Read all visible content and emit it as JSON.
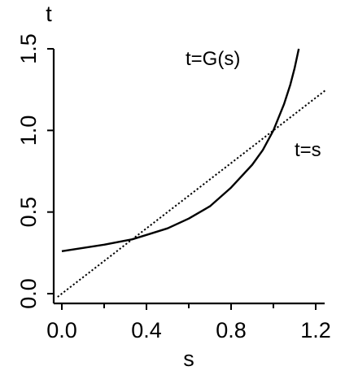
{
  "chart_data": {
    "type": "line",
    "xlabel": "s",
    "ylabel": "t",
    "xlim": [
      -0.02,
      1.25
    ],
    "ylim": [
      -0.02,
      1.5
    ],
    "x_ticks": [
      0.0,
      0.4,
      0.8,
      1.2
    ],
    "x_tick_labels": [
      "0.0",
      "0.4",
      "0.8",
      "1.2"
    ],
    "y_ticks": [
      0.0,
      0.5,
      1.0,
      1.5
    ],
    "y_tick_labels": [
      "0.0",
      "0.5",
      "1.0",
      "1.5"
    ],
    "grid": false,
    "legend": "none",
    "annotations": [
      {
        "text": "t=G(s)",
        "series": "G"
      },
      {
        "text": "t=s",
        "series": "identity"
      }
    ],
    "series": [
      {
        "id": "G",
        "style": "solid",
        "color": "#000000",
        "x": [
          0.0,
          0.1,
          0.2,
          0.3,
          0.333,
          0.4,
          0.5,
          0.6,
          0.7,
          0.8,
          0.9,
          0.95,
          1.0,
          1.05,
          1.08,
          1.1,
          1.12
        ],
        "y": [
          0.26,
          0.28,
          0.3,
          0.325,
          0.333,
          0.36,
          0.4,
          0.46,
          0.535,
          0.65,
          0.79,
          0.88,
          1.0,
          1.16,
          1.28,
          1.38,
          1.5
        ]
      },
      {
        "id": "identity",
        "style": "dotted",
        "color": "#000000",
        "x": [
          -0.02,
          1.25
        ],
        "y": [
          -0.02,
          1.25
        ]
      }
    ]
  }
}
